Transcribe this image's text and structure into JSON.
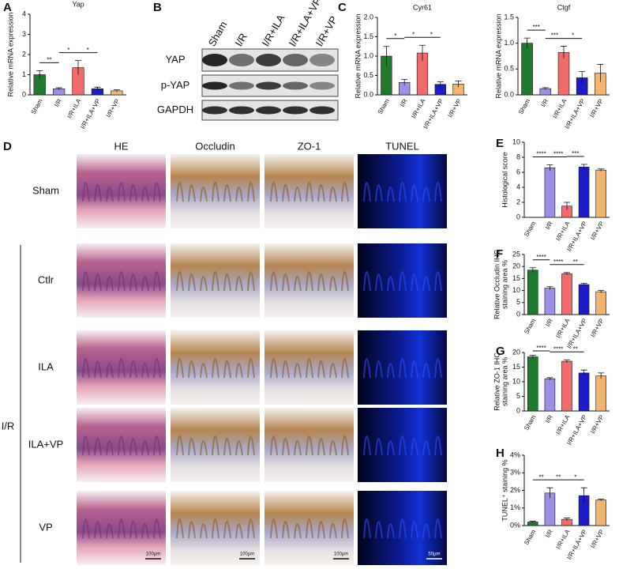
{
  "panel_labels": [
    "A",
    "B",
    "C",
    "D",
    "E",
    "F",
    "G",
    "H"
  ],
  "blot": {
    "lanes": [
      "Sham",
      "I/R",
      "I/R+ILA",
      "I/R+ILA+VP",
      "I/R+VP"
    ],
    "rows": [
      "YAP",
      "p-YAP",
      "GAPDH"
    ]
  },
  "histology": {
    "columns": [
      "HE",
      "Occludin",
      "ZO-1",
      "TUNEL"
    ],
    "rows": [
      "Sham",
      "Ctlr",
      "ILA",
      "ILA+VP",
      "VP"
    ],
    "group": "I/R",
    "scale_bars": [
      "100μm",
      "100μm",
      "100μm",
      "50μm"
    ]
  },
  "chart_data": [
    {
      "type": "bar",
      "title": "Yap",
      "y_label": [
        "Relative mRNA expression"
      ],
      "categories": [
        "Sham",
        "I/R",
        "I/R+ILA",
        "I/R+ILA+VP",
        "I/R+VP"
      ],
      "values": [
        1.0,
        0.3,
        1.35,
        0.3,
        0.2
      ],
      "errors": [
        0.2,
        0.05,
        0.35,
        0.08,
        0.05
      ],
      "colors": [
        "#1f7a2e",
        "#9d8fe6",
        "#f26b6b",
        "#1c1cc9",
        "#f2b46e"
      ],
      "ylim": [
        0,
        4
      ],
      "yticks": [
        0,
        1,
        2,
        3,
        4
      ],
      "annotations": [
        {
          "text": "**",
          "between": [
            "Sham",
            "I/R"
          ]
        },
        {
          "text": "*",
          "between": [
            "I/R",
            "I/R+ILA"
          ]
        },
        {
          "text": "*",
          "between": [
            "I/R+ILA",
            "I/R+ILA+VP"
          ]
        }
      ]
    },
    {
      "type": "bar",
      "title": "Cyr61",
      "y_label": [
        "Relative mRNA expression"
      ],
      "categories": [
        "Sham",
        "I/R",
        "I/R+ILA",
        "I/R+ILA+VP",
        "I/R+VP"
      ],
      "values": [
        1.0,
        0.32,
        1.08,
        0.27,
        0.28
      ],
      "errors": [
        0.25,
        0.08,
        0.2,
        0.07,
        0.08
      ],
      "colors": [
        "#1f7a2e",
        "#9d8fe6",
        "#f26b6b",
        "#1c1cc9",
        "#f2b46e"
      ],
      "ylim": [
        0,
        2
      ],
      "yticks": [
        {
          "value": 0,
          "label": "0.0"
        },
        {
          "value": 0.5,
          "label": "0.5"
        },
        {
          "value": 1,
          "label": "1.0"
        },
        {
          "value": 1.5,
          "label": "1.5"
        },
        {
          "value": 2,
          "label": "2.0"
        }
      ],
      "annotations": [
        {
          "text": "*",
          "between": [
            "Sham",
            "I/R"
          ]
        },
        {
          "text": "*",
          "between": [
            "I/R",
            "I/R+ILA"
          ]
        },
        {
          "text": "*",
          "between": [
            "I/R+ILA",
            "I/R+ILA+VP"
          ]
        }
      ]
    },
    {
      "type": "bar",
      "title": "Ctgf",
      "y_label": [
        "Relative mRNA expression"
      ],
      "categories": [
        "Sham",
        "I/R",
        "I/R+ILA",
        "I/R+ILA+VP",
        "I/R+VP"
      ],
      "values": [
        1.0,
        0.12,
        0.82,
        0.33,
        0.42
      ],
      "errors": [
        0.1,
        0.02,
        0.12,
        0.12,
        0.17
      ],
      "colors": [
        "#1f7a2e",
        "#9d8fe6",
        "#f26b6b",
        "#1c1cc9",
        "#f2b46e"
      ],
      "ylim": [
        0,
        1.5
      ],
      "yticks": [
        {
          "value": 0,
          "label": "0.0"
        },
        {
          "value": 0.5,
          "label": "0.5"
        },
        {
          "value": 1,
          "label": "1.0"
        },
        {
          "value": 1.5,
          "label": "1.5"
        }
      ],
      "annotations": [
        {
          "text": "***",
          "between": [
            "Sham",
            "I/R"
          ]
        },
        {
          "text": "***",
          "between": [
            "I/R",
            "I/R+ILA"
          ]
        },
        {
          "text": "*",
          "between": [
            "I/R+ILA",
            "I/R+ILA+VP"
          ]
        }
      ]
    },
    {
      "type": "bar",
      "y_label": [
        "Histological score"
      ],
      "categories": [
        "Sham",
        "I/R",
        "I/R+ILA",
        "I/R+ILA+VP",
        "I/R+VP"
      ],
      "values": [
        0,
        6.6,
        1.5,
        6.7,
        6.3
      ],
      "errors": [
        0,
        0.4,
        0.5,
        0.35,
        0.15
      ],
      "colors": [
        "#1f7a2e",
        "#9d8fe6",
        "#f26b6b",
        "#1c1cc9",
        "#f2b46e"
      ],
      "ylim": [
        0,
        10
      ],
      "yticks": [
        0,
        2,
        4,
        6,
        8,
        10
      ],
      "annotations": [
        {
          "text": "****",
          "between": [
            "Sham",
            "I/R"
          ]
        },
        {
          "text": "****",
          "between": [
            "I/R",
            "I/R+ILA"
          ]
        },
        {
          "text": "***",
          "between": [
            "I/R+ILA",
            "I/R+ILA+VP"
          ]
        }
      ]
    },
    {
      "type": "bar",
      "y_label": [
        "Relative Occludin IHC",
        "staining area %"
      ],
      "categories": [
        "Sham",
        "I/R",
        "I/R+ILA",
        "I/R+ILA+VP",
        "I/R+VP"
      ],
      "values": [
        18.5,
        11,
        17,
        12.5,
        9.5
      ],
      "errors": [
        1,
        0.6,
        0.5,
        0.5,
        0.5
      ],
      "colors": [
        "#1f7a2e",
        "#9d8fe6",
        "#f26b6b",
        "#1c1cc9",
        "#f2b46e"
      ],
      "ylim": [
        0,
        25
      ],
      "yticks": [
        0,
        5,
        10,
        15,
        20,
        25
      ],
      "annotations": [
        {
          "text": "****",
          "between": [
            "Sham",
            "I/R"
          ]
        },
        {
          "text": "****",
          "between": [
            "I/R",
            "I/R+ILA"
          ]
        },
        {
          "text": "**",
          "between": [
            "I/R+ILA",
            "I/R+ILA+VP"
          ]
        }
      ]
    },
    {
      "type": "bar",
      "y_label": [
        "Relative ZO-1 IHC",
        "staining area %"
      ],
      "categories": [
        "Sham",
        "I/R",
        "I/R+ILA",
        "I/R+ILA+VP",
        "I/R+VP"
      ],
      "values": [
        18.5,
        11,
        17,
        13,
        12
      ],
      "errors": [
        0.5,
        0.4,
        0.5,
        1,
        1
      ],
      "colors": [
        "#1f7a2e",
        "#9d8fe6",
        "#f26b6b",
        "#1c1cc9",
        "#f2b46e"
      ],
      "ylim": [
        0,
        20
      ],
      "yticks": [
        0,
        5,
        10,
        15,
        20
      ],
      "annotations": [
        {
          "text": "****",
          "between": [
            "Sham",
            "I/R"
          ]
        },
        {
          "text": "****",
          "between": [
            "I/R",
            "I/R+ILA"
          ]
        },
        {
          "text": "**",
          "between": [
            "I/R+ILA",
            "I/R+ILA+VP"
          ]
        }
      ]
    },
    {
      "type": "bar",
      "y_label": [
        "TUNEL⁺ staining %"
      ],
      "categories": [
        "Sham",
        "I/R",
        "I/R+ILA",
        "I/R+ILA+VP",
        "I/R+VP"
      ],
      "values": [
        0.2,
        1.85,
        0.35,
        1.7,
        1.45
      ],
      "errors": [
        0.05,
        0.3,
        0.08,
        0.45,
        0.05
      ],
      "colors": [
        "#1f7a2e",
        "#9d8fe6",
        "#f26b6b",
        "#1c1cc9",
        "#f2b46e"
      ],
      "ylim": [
        0,
        4
      ],
      "yticks": [
        {
          "value": 0,
          "label": "0%"
        },
        {
          "value": 1,
          "label": "1%"
        },
        {
          "value": 2,
          "label": "2%"
        },
        {
          "value": 3,
          "label": "3%"
        },
        {
          "value": 4,
          "label": "4%"
        }
      ],
      "annotations": [
        {
          "text": "**",
          "between": [
            "Sham",
            "I/R"
          ]
        },
        {
          "text": "**",
          "between": [
            "I/R",
            "I/R+ILA"
          ]
        },
        {
          "text": "*",
          "between": [
            "I/R+ILA",
            "I/R+ILA+VP"
          ]
        }
      ]
    }
  ]
}
